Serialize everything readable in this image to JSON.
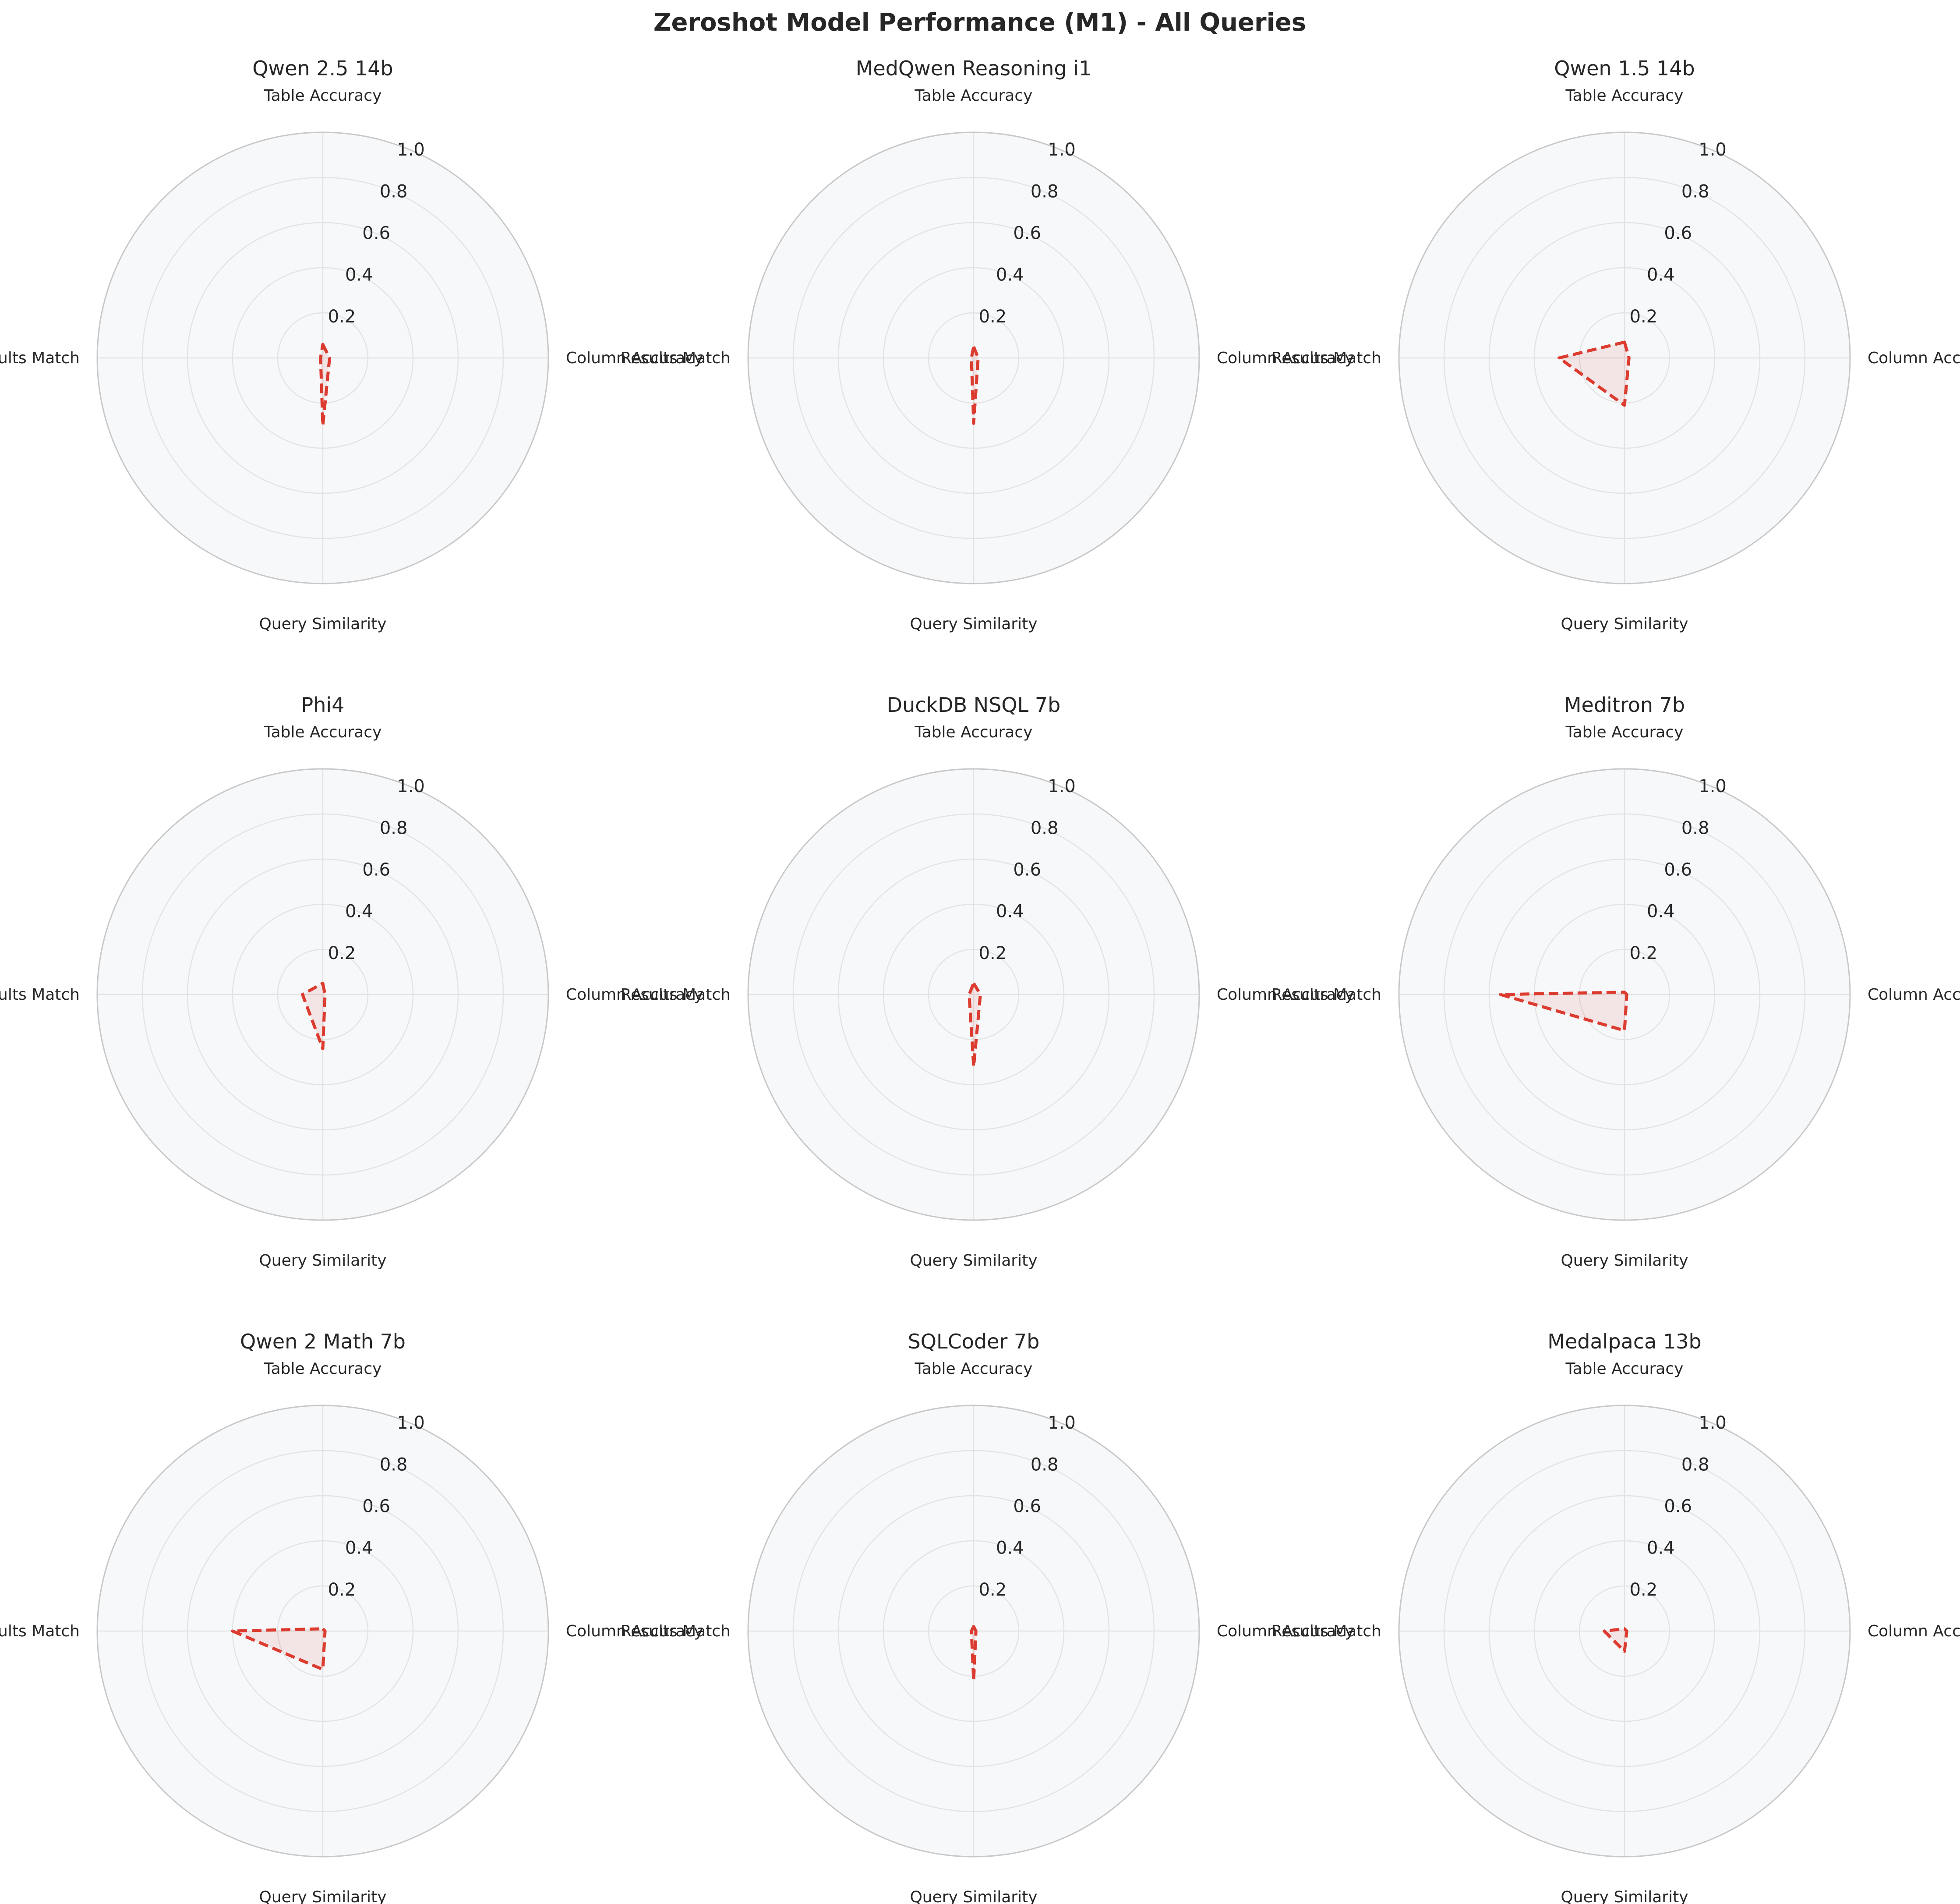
{
  "suptitle": "Zeroshot Model Performance (M1) - All Queries",
  "chart_data": {
    "type": "radar",
    "axes": [
      "Table Accuracy",
      "Column Accuracy",
      "Query Similarity",
      "Results Match"
    ],
    "rlim": [
      0,
      1.0
    ],
    "rticks": [
      "0.2",
      "0.4",
      "0.6",
      "0.8",
      "1.0"
    ],
    "grid": true,
    "line_style": "dashed",
    "colors": {
      "line": "#dc3b2f",
      "fill": "#dc3b2f",
      "background": "#f7f8fa",
      "grid": "#e3e3e3",
      "outer_ring": "#c8c8c8"
    },
    "panels": [
      {
        "title": "Qwen 2.5 14b",
        "values": [
          0.06,
          0.03,
          0.3,
          0.01
        ]
      },
      {
        "title": "MedQwen Reasoning i1",
        "values": [
          0.05,
          0.02,
          0.29,
          0.01
        ]
      },
      {
        "title": "Qwen 1.5 14b",
        "values": [
          0.07,
          0.02,
          0.21,
          0.29
        ]
      },
      {
        "title": "Phi4",
        "values": [
          0.05,
          0.01,
          0.24,
          0.09
        ]
      },
      {
        "title": "DuckDB NSQL 7b",
        "values": [
          0.05,
          0.03,
          0.32,
          0.02
        ]
      },
      {
        "title": "Meditron 7b",
        "values": [
          0.01,
          0.01,
          0.16,
          0.55
        ]
      },
      {
        "title": "Qwen 2 Math 7b",
        "values": [
          0.01,
          0.01,
          0.17,
          0.4
        ]
      },
      {
        "title": "SQLCoder 7b",
        "values": [
          0.02,
          0.01,
          0.22,
          0.01
        ]
      },
      {
        "title": "Medalpaca 13b",
        "values": [
          0.01,
          0.01,
          0.09,
          0.09
        ]
      }
    ]
  }
}
